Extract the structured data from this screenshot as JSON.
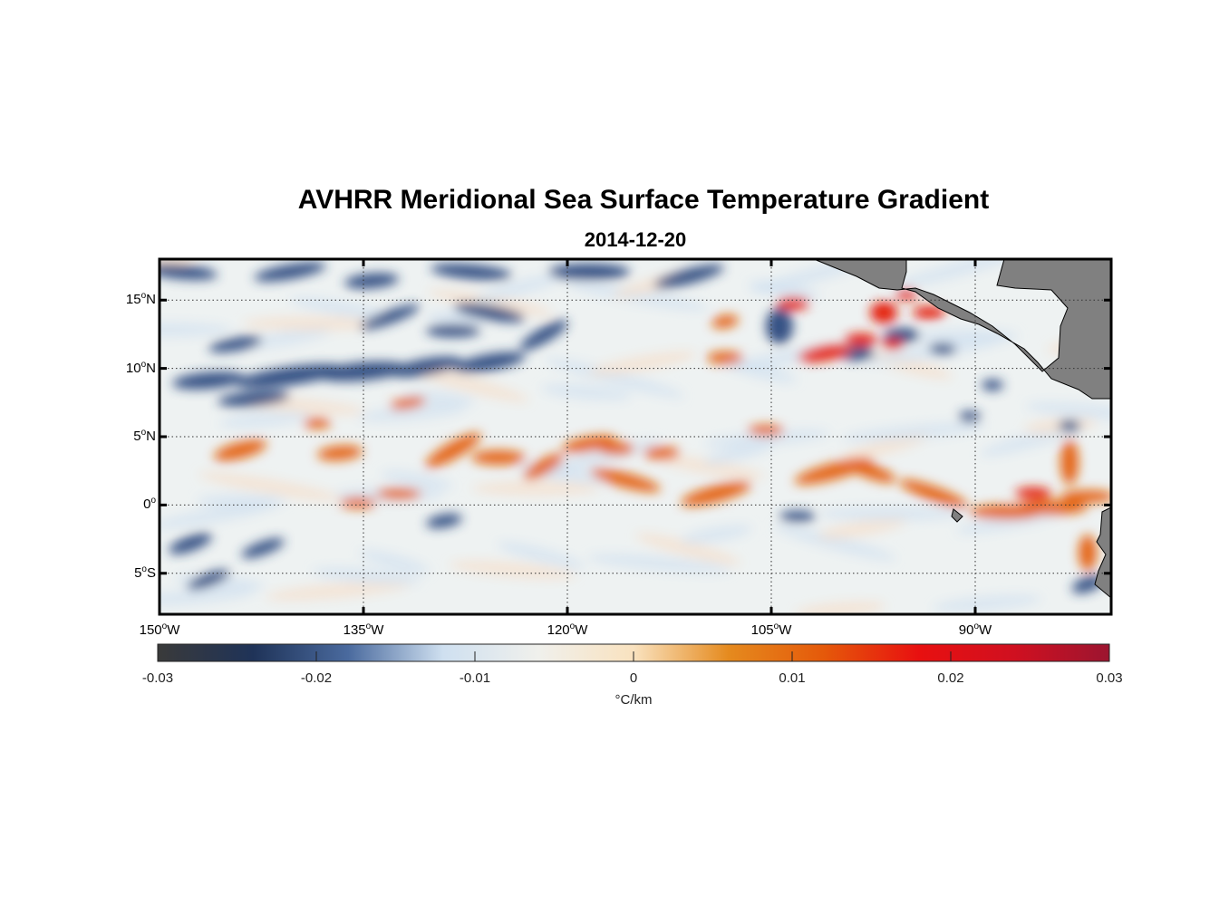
{
  "map": {
    "title": "AVHRR Meridional Sea Surface Temperature Gradient",
    "subtitle": "2014-12-20",
    "variable_unit": "°C/km",
    "lon_range": [
      -150,
      -80
    ],
    "lat_range": [
      -8,
      18
    ],
    "lat_ticks": [
      {
        "deg": "15",
        "hemi": "N",
        "value": 15
      },
      {
        "deg": "10",
        "hemi": "N",
        "value": 10
      },
      {
        "deg": "5",
        "hemi": "N",
        "value": 5
      },
      {
        "deg": "0",
        "hemi": "",
        "value": 0
      },
      {
        "deg": "5",
        "hemi": "S",
        "value": -5
      }
    ],
    "lon_ticks": [
      {
        "deg": "150",
        "hemi": "W",
        "value": -150
      },
      {
        "deg": "135",
        "hemi": "W",
        "value": -135
      },
      {
        "deg": "120",
        "hemi": "W",
        "value": -120
      },
      {
        "deg": "105",
        "hemi": "W",
        "value": -105
      },
      {
        "deg": "90",
        "hemi": "W",
        "value": -90
      }
    ],
    "grid": true,
    "land_color": "#808080",
    "colorbar": {
      "ticks": [
        "-0.03",
        "-0.02",
        "-0.01",
        "0",
        "0.01",
        "0.02",
        "0.03"
      ],
      "range": [
        -0.03,
        0.03
      ],
      "colors": [
        "#3a3a3a",
        "#1f3358",
        "#4a6a9e",
        "#cfe0f0",
        "#f0f0ec",
        "#f9e2bf",
        "#e58a1e",
        "#e5590a",
        "#e81010",
        "#d01020",
        "#9c1530"
      ]
    }
  }
}
